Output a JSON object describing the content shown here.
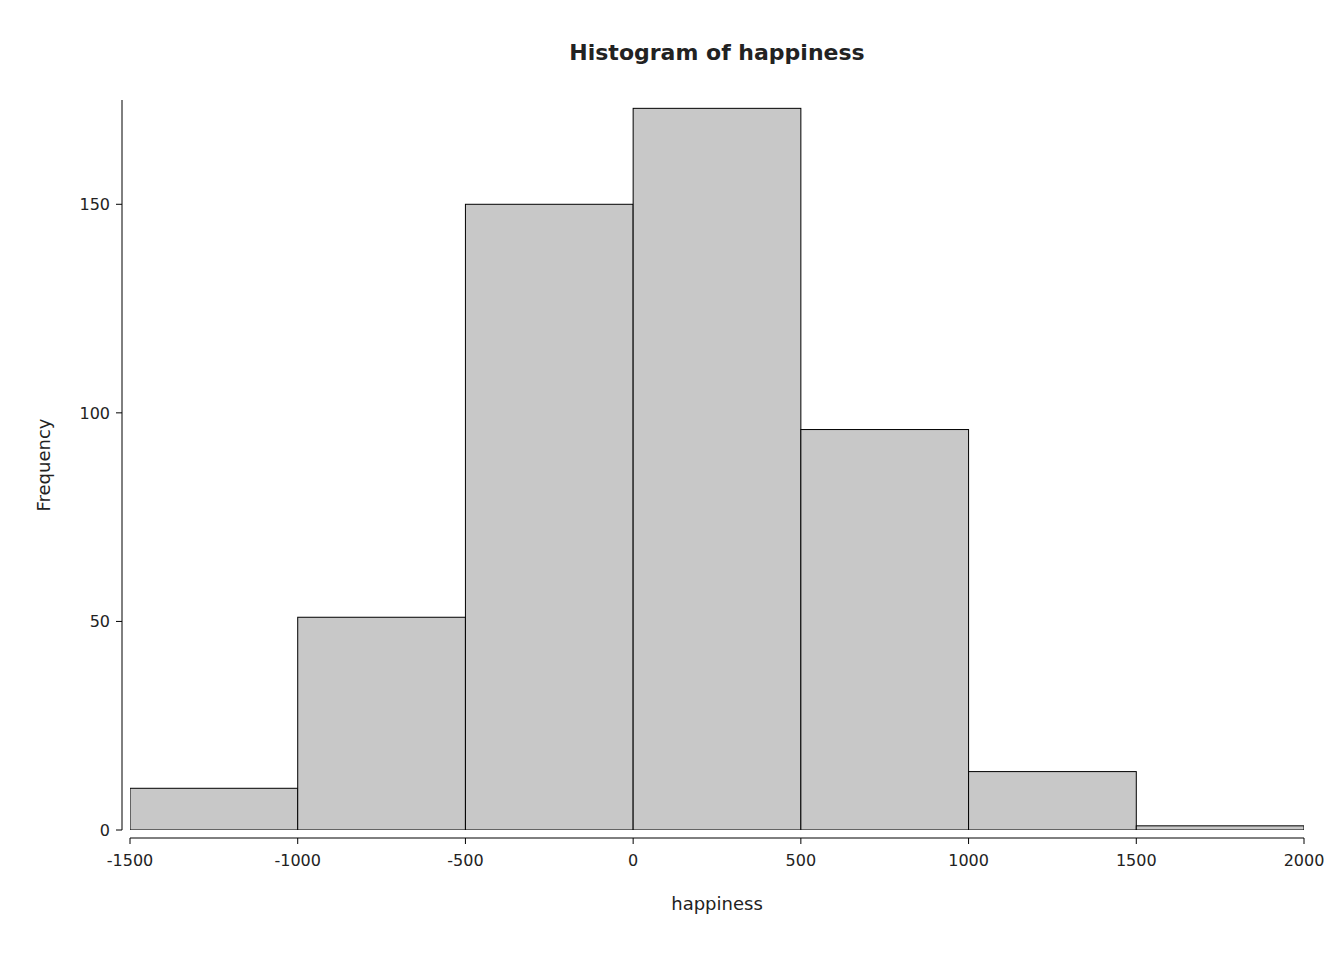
{
  "chart_data": {
    "type": "histogram",
    "title": "Histogram of happiness",
    "x_label": "happiness",
    "y_label": "Frequency",
    "bins": [
      -1500,
      -1000,
      -500,
      0,
      500,
      1000,
      1500,
      2000
    ],
    "values": [
      10,
      51,
      150,
      173,
      96,
      14,
      1
    ],
    "color": "#c8c8c8",
    "xlim": [
      -1500,
      2000
    ],
    "ylim": [
      0,
      175
    ],
    "xticks": [
      -1500,
      -1000,
      -500,
      0,
      500,
      1000,
      1500,
      2000
    ],
    "yticks": [
      0,
      50,
      100,
      150
    ],
    "grid": false
  }
}
